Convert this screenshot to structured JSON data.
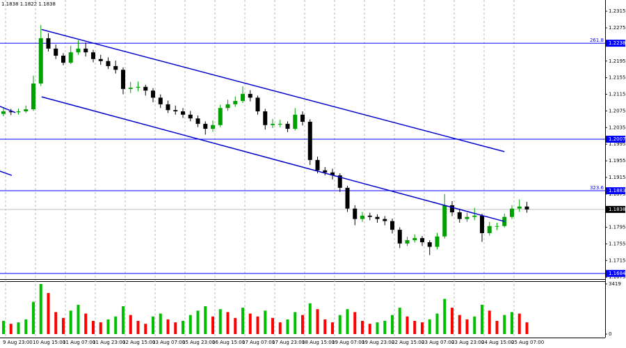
{
  "chart_data": {
    "type": "candlestick",
    "info_text": "1.1838 1.1822 1.1838",
    "categories": [
      "9 Aug 23:00",
      null,
      null,
      null,
      "10 Aug 15:00",
      null,
      null,
      null,
      "11 Aug 07:00",
      null,
      null,
      null,
      "11 Aug 23:00",
      null,
      null,
      null,
      "12 Aug 15:00",
      null,
      null,
      null,
      "13 Aug 07:00",
      null,
      null,
      null,
      "15 Aug 23:00",
      null,
      null,
      null,
      "16 Aug 15:00",
      null,
      null,
      null,
      "17 Aug 07:00",
      null,
      null,
      null,
      "17 Aug 23:00",
      null,
      null,
      null,
      "18 Aug 15:00",
      null,
      null,
      null,
      "19 Aug 07:00",
      null,
      null,
      null,
      "19 Aug 23:00",
      null,
      null,
      null,
      "22 Aug 15:00",
      null,
      null,
      null,
      "23 Aug 07:00",
      null,
      null,
      null,
      "23 Aug 23:00",
      null,
      null,
      null,
      "24 Aug 15:00",
      null,
      null,
      null,
      "25 Aug 07:00",
      null,
      null
    ],
    "candles": [
      [
        1.2068,
        1.2082,
        1.2062,
        1.2074
      ],
      [
        1.2074,
        1.208,
        1.2065,
        1.2072
      ],
      [
        1.2072,
        1.2081,
        1.2066,
        1.2074
      ],
      [
        1.2074,
        1.2088,
        1.207,
        1.2079
      ],
      [
        1.2079,
        1.216,
        1.2075,
        1.2141
      ],
      [
        1.2141,
        1.2282,
        1.2135,
        1.225
      ],
      [
        1.225,
        1.2262,
        1.2218,
        1.2225
      ],
      [
        1.2225,
        1.2235,
        1.22,
        1.2208
      ],
      [
        1.2208,
        1.2214,
        1.2185,
        1.2191
      ],
      [
        1.2191,
        1.2232,
        1.2188,
        1.2216
      ],
      [
        1.2216,
        1.2245,
        1.221,
        1.2225
      ],
      [
        1.2225,
        1.224,
        1.2206,
        1.2216
      ],
      [
        1.2216,
        1.2222,
        1.2192,
        1.22
      ],
      [
        1.22,
        1.221,
        1.2186,
        1.2195
      ],
      [
        1.2195,
        1.2204,
        1.2176,
        1.2183
      ],
      [
        1.2183,
        1.2196,
        1.2165,
        1.2174
      ],
      [
        1.2174,
        1.218,
        1.2115,
        1.2128
      ],
      [
        1.2128,
        1.2145,
        1.2118,
        1.2131
      ],
      [
        1.2131,
        1.2146,
        1.2122,
        1.2133
      ],
      [
        1.2133,
        1.2138,
        1.2112,
        1.2124
      ],
      [
        1.2124,
        1.213,
        1.2096,
        1.2107
      ],
      [
        1.2107,
        1.2115,
        1.2082,
        1.2091
      ],
      [
        1.2091,
        1.21,
        1.207,
        1.2077
      ],
      [
        1.2077,
        1.2088,
        1.2066,
        1.2074
      ],
      [
        1.2074,
        1.2082,
        1.2058,
        1.2066
      ],
      [
        1.2066,
        1.2075,
        1.205,
        1.2057
      ],
      [
        1.2057,
        1.2064,
        1.2036,
        1.2044
      ],
      [
        1.2044,
        1.205,
        1.2018,
        1.2032
      ],
      [
        1.2032,
        1.2052,
        1.2025,
        1.2041
      ],
      [
        1.2041,
        1.209,
        1.2036,
        1.2082
      ],
      [
        1.2082,
        1.2102,
        1.2075,
        1.2091
      ],
      [
        1.2091,
        1.211,
        1.2085,
        1.2099
      ],
      [
        1.2099,
        1.2134,
        1.2094,
        1.2116
      ],
      [
        1.2116,
        1.2125,
        1.2098,
        1.2107
      ],
      [
        1.2107,
        1.2112,
        1.2066,
        1.2074
      ],
      [
        1.2074,
        1.208,
        1.203,
        1.2041
      ],
      [
        1.2041,
        1.2056,
        1.2034,
        1.2044
      ],
      [
        1.2044,
        1.2054,
        1.2036,
        1.2044
      ],
      [
        1.2044,
        1.205,
        1.2024,
        1.2032
      ],
      [
        1.2032,
        1.2082,
        1.2028,
        1.2066
      ],
      [
        1.2066,
        1.2074,
        1.204,
        1.2049
      ],
      [
        1.2049,
        1.2055,
        1.1945,
        1.1957
      ],
      [
        1.1957,
        1.1965,
        1.1925,
        1.1932
      ],
      [
        1.1932,
        1.194,
        1.192,
        1.1927
      ],
      [
        1.1927,
        1.1936,
        1.191,
        1.192
      ],
      [
        1.192,
        1.1925,
        1.188,
        1.189
      ],
      [
        1.189,
        1.1895,
        1.1832,
        1.184
      ],
      [
        1.184,
        1.1848,
        1.18,
        1.1815
      ],
      [
        1.1815,
        1.1832,
        1.1808,
        1.1823
      ],
      [
        1.1823,
        1.183,
        1.1812,
        1.182
      ],
      [
        1.182,
        1.1826,
        1.1806,
        1.1815
      ],
      [
        1.1815,
        1.1822,
        1.18,
        1.181
      ],
      [
        1.181,
        1.1816,
        1.178,
        1.1789
      ],
      [
        1.1789,
        1.1795,
        1.1745,
        1.1756
      ],
      [
        1.1756,
        1.1772,
        1.175,
        1.1764
      ],
      [
        1.1764,
        1.1778,
        1.1758,
        1.1769
      ],
      [
        1.1769,
        1.1774,
        1.175,
        1.1759
      ],
      [
        1.1759,
        1.1764,
        1.1728,
        1.1748
      ],
      [
        1.1748,
        1.1782,
        1.1742,
        1.1773
      ],
      [
        1.1773,
        1.1875,
        1.1768,
        1.1848
      ],
      [
        1.1848,
        1.1858,
        1.1822,
        1.1831
      ],
      [
        1.1831,
        1.184,
        1.1806,
        1.1815
      ],
      [
        1.1815,
        1.183,
        1.1808,
        1.182
      ],
      [
        1.182,
        1.1842,
        1.1812,
        1.1823
      ],
      [
        1.1823,
        1.1828,
        1.176,
        1.1781
      ],
      [
        1.1781,
        1.1808,
        1.1775,
        1.1798
      ],
      [
        1.1798,
        1.1806,
        1.1788,
        1.1798
      ],
      [
        1.1798,
        1.1828,
        1.1794,
        1.182
      ],
      [
        1.182,
        1.1848,
        1.1815,
        1.184
      ],
      [
        1.184,
        1.1862,
        1.1832,
        1.1845
      ],
      [
        1.1845,
        1.1856,
        1.183,
        1.1838
      ]
    ],
    "up_color": "#00a000",
    "down_color": "#000000",
    "volumes": [
      900,
      700,
      800,
      1000,
      2200,
      3419,
      2800,
      1500,
      1100,
      1600,
      2000,
      1400,
      900,
      800,
      1000,
      1200,
      1900,
      1300,
      900,
      700,
      1200,
      1400,
      1000,
      800,
      900,
      1300,
      1600,
      1900,
      1200,
      1700,
      1500,
      1100,
      1800,
      1400,
      1200,
      1600,
      1100,
      800,
      1000,
      1500,
      1300,
      2100,
      1700,
      1000,
      800,
      1300,
      1700,
      1500,
      900,
      700,
      800,
      900,
      1300,
      1800,
      1200,
      900,
      800,
      1000,
      1400,
      2400,
      1800,
      1300,
      1000,
      1200,
      2000,
      1600,
      900,
      1300,
      1500,
      1400,
      800
    ],
    "volume_up_color": "#00c000",
    "volume_down_color": "#ff0000",
    "volume_ylim": [
      0,
      3419
    ],
    "volume_yticks": [
      3419,
      0
    ],
    "ylim": [
      1.1672,
      1.2342
    ],
    "yticks": [
      1.2315,
      1.2275,
      1.2195,
      1.2155,
      1.2115,
      1.2075,
      1.2035,
      1.1995,
      1.1955,
      1.1915,
      1.1875,
      1.1795,
      1.1755,
      1.1715,
      1.1675
    ],
    "hlines": [
      {
        "value": 1.2238,
        "level": "261.8"
      },
      {
        "value": 1.2007
      },
      {
        "value": 1.1883,
        "level": "323.6"
      },
      {
        "value": 1.1684
      }
    ],
    "hline_color": "#0000ff",
    "current_price": 1.1838,
    "trend_lines": [
      {
        "start": [
          5.1,
          1.2271
        ],
        "end": [
          67.0,
          1.1977
        ]
      },
      {
        "start": [
          5.1,
          1.2109
        ],
        "end": [
          67.0,
          1.1809
        ]
      },
      {
        "start": [
          -0.47,
          1.2086
        ],
        "end": [
          1.6,
          1.2071
        ]
      },
      {
        "start": [
          -0.47,
          1.193
        ],
        "end": [
          1.1,
          1.192
        ]
      }
    ],
    "trend_color": "#0000cc"
  }
}
